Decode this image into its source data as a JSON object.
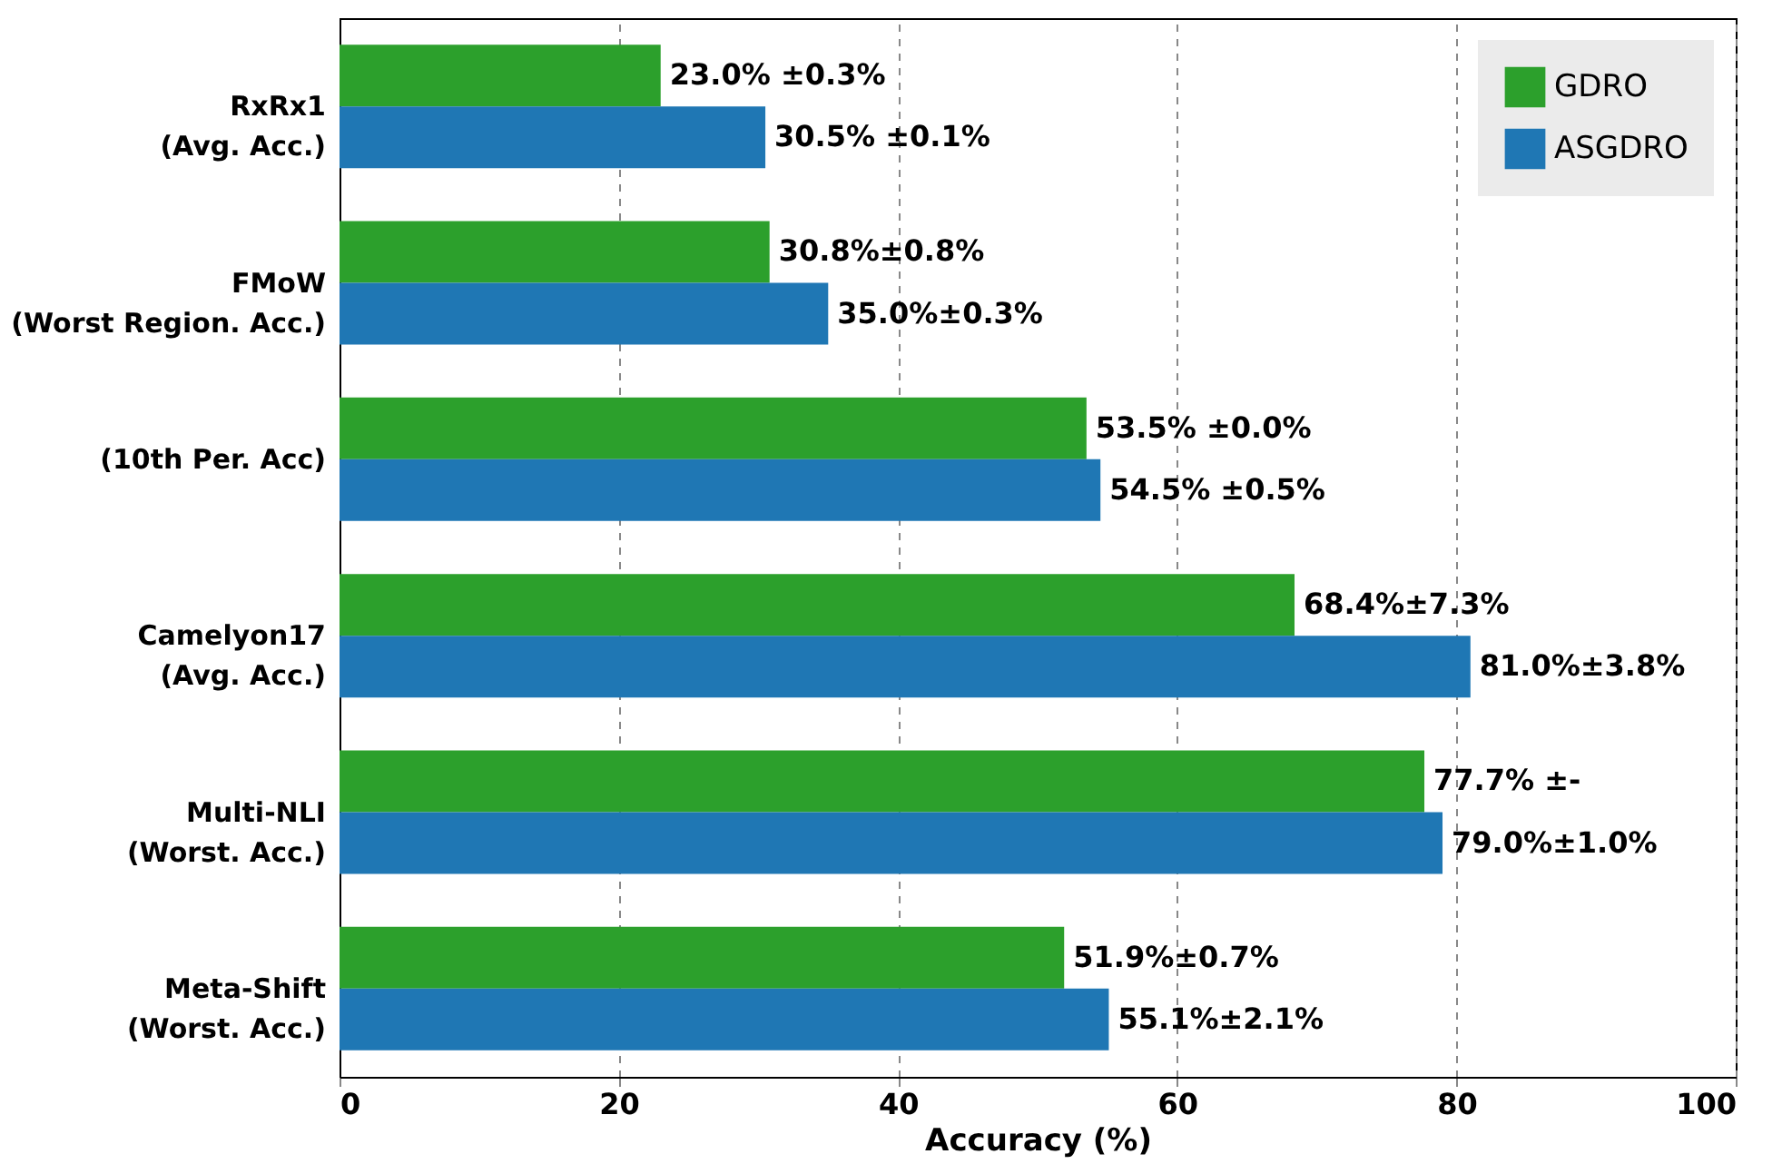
{
  "chart_data": {
    "type": "bar",
    "orientation": "horizontal",
    "xlabel": "Accuracy (%)",
    "categories": [
      "RxRx1\n(Avg. Acc.)",
      "FMoW\n(Worst Region. Acc.)",
      "(10th Per. Acc)",
      "Camelyon17\n(Avg. Acc.)",
      "Multi-NLI\n(Worst. Acc.)",
      "Meta-Shift\n(Worst. Acc.)"
    ],
    "series": [
      {
        "name": "GDRO",
        "color": "#2ca02c",
        "values": [
          23.0,
          30.8,
          53.5,
          68.4,
          77.7,
          51.9
        ],
        "value_labels": [
          "23.0% ±0.3%",
          "30.8%±0.8%",
          "53.5% ±0.0%",
          "68.4%±7.3%",
          "77.7% ±-",
          "51.9%±0.7%"
        ]
      },
      {
        "name": "ASGDRO",
        "color": "#1f77b4",
        "values": [
          30.5,
          35.0,
          54.5,
          81.0,
          79.0,
          55.1
        ],
        "value_labels": [
          "30.5% ±0.1%",
          "35.0%±0.3%",
          "54.5% ±0.5%",
          "81.0%±3.8%",
          "79.0%±1.0%",
          "55.1%±2.1%"
        ]
      }
    ],
    "xlim": [
      0,
      100
    ],
    "xticks": [
      0,
      20,
      40,
      60,
      80,
      100
    ],
    "grid": "x",
    "legend": "top right"
  }
}
